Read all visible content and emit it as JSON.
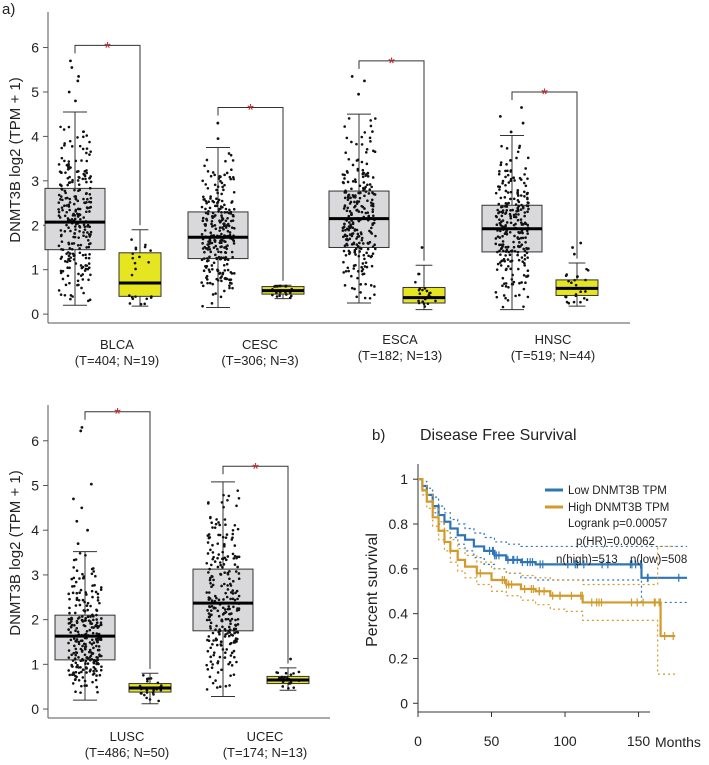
{
  "chart_data": [
    {
      "panel": "a",
      "type": "box",
      "panel_label": "a)",
      "ylabel": "DNMT3B log2 (TPM + 1)",
      "ylim": [
        -0.2,
        6.8
      ],
      "yticks": [
        0,
        1,
        2,
        3,
        4,
        5,
        6
      ],
      "colors": {
        "tumor": "#d9d9dc",
        "normal": "#e5e520"
      },
      "significance_marker": "*",
      "groups": [
        {
          "name": "BLCA",
          "counts": "(T=404; N=19)",
          "tumor": {
            "min": 0.2,
            "q1": 1.45,
            "median": 2.07,
            "q3": 2.83,
            "max": 4.55,
            "outliers": [
              4.8,
              5.0,
              5.25,
              5.35,
              5.55,
              5.7
            ]
          },
          "normal": {
            "min": 0.18,
            "q1": 0.4,
            "median": 0.7,
            "q3": 1.38,
            "max": 1.9,
            "outliers": []
          }
        },
        {
          "name": "CESC",
          "counts": "(T=306; N=3)",
          "tumor": {
            "min": 0.15,
            "q1": 1.25,
            "median": 1.73,
            "q3": 2.3,
            "max": 3.75,
            "outliers": [
              3.95,
              4.3
            ]
          },
          "normal": {
            "min": 0.35,
            "q1": 0.45,
            "median": 0.53,
            "q3": 0.62,
            "max": 0.65,
            "outliers": []
          }
        },
        {
          "name": "ESCA",
          "counts": "(T=182; N=13)",
          "tumor": {
            "min": 0.25,
            "q1": 1.5,
            "median": 2.15,
            "q3": 2.77,
            "max": 4.5,
            "outliers": [
              4.95,
              5.25,
              5.35
            ]
          },
          "normal": {
            "min": 0.1,
            "q1": 0.25,
            "median": 0.37,
            "q3": 0.6,
            "max": 1.1,
            "outliers": [
              1.5
            ]
          },
          "significant": true
        },
        {
          "name": "HNSC",
          "counts": "(T=519; N=44)",
          "tumor": {
            "min": 0.1,
            "q1": 1.4,
            "median": 1.92,
            "q3": 2.45,
            "max": 4.02,
            "outliers": [
              4.1,
              4.3,
              4.45,
              4.65
            ]
          },
          "normal": {
            "min": 0.18,
            "q1": 0.42,
            "median": 0.58,
            "q3": 0.77,
            "max": 1.15,
            "outliers": [
              1.35,
              1.5,
              1.6
            ]
          },
          "significant": true
        }
      ]
    },
    {
      "panel": "a-lower",
      "type": "box",
      "ylabel": "DNMT3B log2 (TPM + 1)",
      "ylim": [
        -0.2,
        6.8
      ],
      "yticks": [
        0,
        1,
        2,
        3,
        4,
        5,
        6
      ],
      "significance_marker": "*",
      "groups": [
        {
          "name": "LUSC",
          "counts": "(T=486; N=50)",
          "tumor": {
            "min": 0.2,
            "q1": 1.1,
            "median": 1.63,
            "q3": 2.1,
            "max": 3.52,
            "outliers": [
              3.7,
              4.0,
              4.2,
              4.5,
              4.7,
              5.03,
              6.22,
              6.3
            ]
          },
          "normal": {
            "min": 0.12,
            "q1": 0.38,
            "median": 0.47,
            "q3": 0.57,
            "max": 0.8,
            "outliers": []
          },
          "significant": true
        },
        {
          "name": "UCEC",
          "counts": "(T=174; N=13)",
          "tumor": {
            "min": 0.28,
            "q1": 1.75,
            "median": 2.37,
            "q3": 3.13,
            "max": 5.08,
            "outliers": []
          },
          "normal": {
            "min": 0.42,
            "q1": 0.57,
            "median": 0.65,
            "q3": 0.73,
            "max": 0.92,
            "outliers": [
              1.12
            ]
          },
          "significant": true
        }
      ]
    },
    {
      "panel": "b",
      "type": "line",
      "panel_label": "b)",
      "title": "Disease Free Survival",
      "ylabel": "Percent survival",
      "xlabel": "Months",
      "xlim": [
        0,
        185
      ],
      "ylim": [
        -0.03,
        1.05
      ],
      "xticks": [
        0,
        50,
        100,
        150
      ],
      "yticks": [
        0,
        0.2,
        0.4,
        0.6,
        0.8,
        1
      ],
      "legend": {
        "position": "top-right",
        "entries": [
          "Low DNMT3B TPM",
          "High DNMT3B TPM"
        ],
        "stats": [
          "Logrank p=0.00057",
          "p(HR)=0.00062",
          "n(high)=513",
          "n(low)=508"
        ]
      },
      "series": [
        {
          "name": "Low DNMT3B TPM",
          "color": "#2e75b6",
          "x": [
            0,
            3,
            6,
            10,
            14,
            18,
            22,
            27,
            32,
            38,
            45,
            52,
            60,
            70,
            80,
            95,
            110,
            130,
            150,
            152,
            183
          ],
          "y": [
            1.0,
            0.97,
            0.93,
            0.88,
            0.84,
            0.81,
            0.78,
            0.75,
            0.73,
            0.7,
            0.68,
            0.66,
            0.64,
            0.63,
            0.62,
            0.62,
            0.62,
            0.62,
            0.62,
            0.56,
            0.56
          ],
          "ci_upper": [
            1.0,
            0.99,
            0.96,
            0.92,
            0.88,
            0.85,
            0.82,
            0.8,
            0.78,
            0.76,
            0.74,
            0.72,
            0.71,
            0.7,
            0.7,
            0.7,
            0.7,
            0.7,
            0.7,
            0.7,
            0.7
          ],
          "ci_lower": [
            1.0,
            0.95,
            0.9,
            0.85,
            0.8,
            0.77,
            0.74,
            0.71,
            0.68,
            0.65,
            0.62,
            0.6,
            0.58,
            0.56,
            0.55,
            0.55,
            0.55,
            0.55,
            0.55,
            0.45,
            0.45
          ]
        },
        {
          "name": "High DNMT3B TPM",
          "color": "#d29a2a",
          "x": [
            0,
            3,
            6,
            10,
            14,
            18,
            22,
            27,
            32,
            40,
            50,
            60,
            70,
            80,
            90,
            100,
            112,
            130,
            150,
            163,
            165,
            175
          ],
          "y": [
            1.0,
            0.95,
            0.9,
            0.83,
            0.77,
            0.72,
            0.68,
            0.64,
            0.61,
            0.58,
            0.55,
            0.53,
            0.51,
            0.5,
            0.48,
            0.48,
            0.45,
            0.45,
            0.45,
            0.45,
            0.3,
            0.3
          ],
          "ci_upper": [
            1.0,
            0.97,
            0.93,
            0.87,
            0.81,
            0.77,
            0.73,
            0.69,
            0.66,
            0.63,
            0.6,
            0.58,
            0.57,
            0.56,
            0.55,
            0.55,
            0.53,
            0.53,
            0.53,
            0.7,
            0.7,
            0.7
          ],
          "ci_lower": [
            1.0,
            0.93,
            0.87,
            0.79,
            0.73,
            0.68,
            0.63,
            0.59,
            0.56,
            0.53,
            0.5,
            0.48,
            0.46,
            0.44,
            0.42,
            0.41,
            0.37,
            0.37,
            0.37,
            0.13,
            0.13,
            0.13
          ]
        }
      ]
    }
  ]
}
